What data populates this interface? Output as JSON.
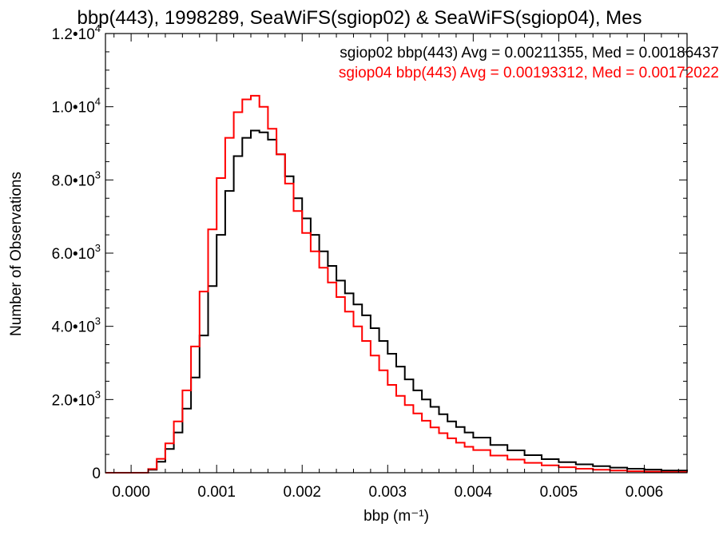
{
  "chart_data": {
    "type": "line",
    "title": "bbp(443), 1998289, SeaWiFS(sgiop02) & SeaWiFS(sgiop04), Mes",
    "xlabel": "bbp (m⁻¹)",
    "ylabel": "Number of Observations",
    "xlim": [
      -0.0003,
      0.0065
    ],
    "ylim": [
      0,
      12000
    ],
    "x_ticks": [
      {
        "value": 0.0,
        "label": "0.000"
      },
      {
        "value": 0.001,
        "label": "0.001"
      },
      {
        "value": 0.002,
        "label": "0.002"
      },
      {
        "value": 0.003,
        "label": "0.003"
      },
      {
        "value": 0.004,
        "label": "0.004"
      },
      {
        "value": 0.005,
        "label": "0.005"
      },
      {
        "value": 0.006,
        "label": "0.006"
      }
    ],
    "y_ticks": [
      {
        "value": 0,
        "mantissa": "0",
        "exp": ""
      },
      {
        "value": 2000,
        "mantissa": "2.0•1",
        "exp": "3"
      },
      {
        "value": 4000,
        "mantissa": "4.0•1",
        "exp": "3"
      },
      {
        "value": 6000,
        "mantissa": "6.0•1",
        "exp": "3"
      },
      {
        "value": 8000,
        "mantissa": "8.0•1",
        "exp": "3"
      },
      {
        "value": 10000,
        "mantissa": "1.0•1",
        "exp": "4"
      },
      {
        "value": 12000,
        "mantissa": "1.2•1",
        "exp": "4"
      }
    ],
    "grid": false,
    "legend_placement": "top-right",
    "annotations": [
      {
        "text": "sgiop02 bbp(443) Avg = 0.00211355, Med = 0.00186437",
        "color": "#000000"
      },
      {
        "text": "sgiop04 bbp(443) Avg = 0.00193312, Med = 0.00172022",
        "color": "#ff0000"
      }
    ],
    "series": [
      {
        "color": "#000000",
        "style": "step",
        "x": [
          -0.0003,
          0.0,
          0.0002,
          0.0003,
          0.0004,
          0.0005,
          0.0006,
          0.0007,
          0.0008,
          0.0009,
          0.001,
          0.0011,
          0.0012,
          0.0013,
          0.0014,
          0.0015,
          0.0016,
          0.0017,
          0.0018,
          0.0019,
          0.002,
          0.0021,
          0.0022,
          0.0023,
          0.0024,
          0.0025,
          0.0026,
          0.0027,
          0.0028,
          0.0029,
          0.003,
          0.0031,
          0.0032,
          0.0033,
          0.0034,
          0.0035,
          0.0036,
          0.0037,
          0.0038,
          0.0039,
          0.004,
          0.0042,
          0.0044,
          0.0046,
          0.0048,
          0.005,
          0.0052,
          0.0054,
          0.0056,
          0.0058,
          0.006,
          0.0062,
          0.0065
        ],
        "y": [
          0,
          0,
          80,
          300,
          650,
          1100,
          1750,
          2600,
          3750,
          5100,
          6500,
          7700,
          8650,
          9150,
          9350,
          9300,
          9100,
          8700,
          8100,
          7500,
          6950,
          6500,
          6050,
          5650,
          5250,
          4900,
          4600,
          4300,
          3950,
          3600,
          3250,
          2900,
          2550,
          2250,
          2000,
          1800,
          1600,
          1400,
          1250,
          1100,
          960,
          760,
          610,
          480,
          370,
          290,
          230,
          180,
          140,
          110,
          85,
          60,
          40
        ]
      },
      {
        "color": "#ff0000",
        "style": "step",
        "x": [
          -0.0003,
          0.0,
          0.0002,
          0.0003,
          0.0004,
          0.0005,
          0.0006,
          0.0007,
          0.0008,
          0.0009,
          0.001,
          0.0011,
          0.0012,
          0.0013,
          0.0014,
          0.0015,
          0.0016,
          0.0017,
          0.0018,
          0.0019,
          0.002,
          0.0021,
          0.0022,
          0.0023,
          0.0024,
          0.0025,
          0.0026,
          0.0027,
          0.0028,
          0.0029,
          0.003,
          0.0031,
          0.0032,
          0.0033,
          0.0034,
          0.0035,
          0.0036,
          0.0037,
          0.0038,
          0.0039,
          0.004,
          0.0042,
          0.0044,
          0.0046,
          0.0048,
          0.005,
          0.0052,
          0.0054,
          0.0056,
          0.0058,
          0.006,
          0.0062,
          0.0065
        ],
        "y": [
          0,
          0,
          100,
          380,
          800,
          1400,
          2250,
          3450,
          4950,
          6650,
          8050,
          9150,
          9850,
          10200,
          10300,
          10000,
          9400,
          8700,
          7900,
          7150,
          6550,
          6050,
          5600,
          5200,
          4800,
          4400,
          4000,
          3600,
          3200,
          2800,
          2400,
          2100,
          1850,
          1620,
          1420,
          1240,
          1080,
          940,
          820,
          710,
          620,
          470,
          360,
          270,
          200,
          150,
          110,
          80,
          58,
          42,
          30,
          20,
          12
        ]
      }
    ]
  }
}
